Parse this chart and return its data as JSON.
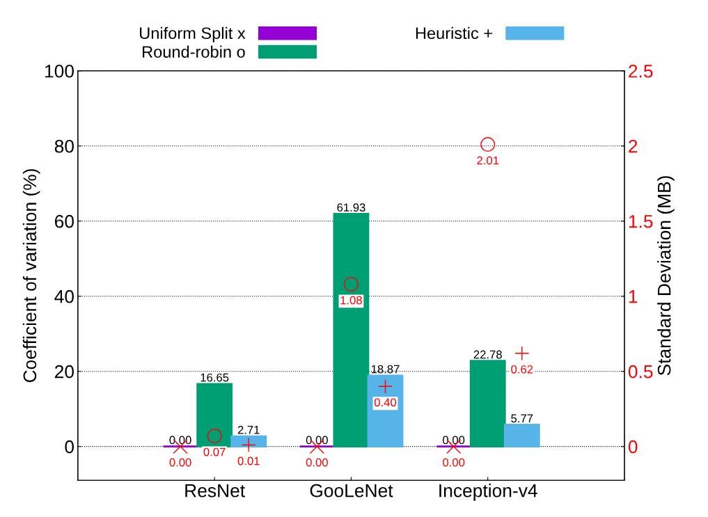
{
  "chart_data": {
    "type": "bar",
    "categories": [
      "ResNet",
      "GooLeNet",
      "Inception-v4"
    ],
    "ylabel": "Coefficient of variation (%)",
    "y2label": "Standard Deviation (MB)",
    "ylim": [
      -9,
      100
    ],
    "yticks": [
      0,
      20,
      40,
      60,
      80,
      100
    ],
    "y2lim": [
      -0.225,
      2.5
    ],
    "y2ticks": [
      0,
      0.5,
      1,
      1.5,
      2,
      2.5
    ],
    "grid": "y",
    "legend": "top",
    "series": [
      {
        "name": "Uniform Split x",
        "color": "#9400d3",
        "values": [
          0,
          0,
          0
        ],
        "value_labels": [
          "0.00",
          "0.00",
          "0.00"
        ]
      },
      {
        "name": "Round-robin o",
        "color": "#009e73",
        "values": [
          16.65,
          61.93,
          22.78
        ],
        "value_labels": [
          "16.65",
          "61.93",
          "22.78"
        ]
      },
      {
        "name": "Heuristic +",
        "color": "#56b4e9",
        "values": [
          2.71,
          18.87,
          5.77
        ],
        "value_labels": [
          "2.71",
          "18.87",
          "5.77"
        ]
      },
      {
        "type": "scatter",
        "axis": "y2",
        "marker": "cross",
        "color": "#ff0000",
        "values": [
          0,
          0,
          0
        ],
        "value_labels": [
          "0.00",
          "0.00",
          "0.00"
        ]
      },
      {
        "type": "scatter",
        "axis": "y2",
        "marker": "circle",
        "color": "#ff0000",
        "values": [
          0.07,
          1.08,
          2.01
        ],
        "value_labels": [
          "0.07",
          "1.08",
          "2.01"
        ]
      },
      {
        "type": "scatter",
        "axis": "y2",
        "marker": "plus",
        "color": "#ff0000",
        "values": [
          0.01,
          0.4,
          0.62
        ],
        "value_labels": [
          "0.01",
          "0.40",
          "0.62"
        ]
      }
    ]
  }
}
